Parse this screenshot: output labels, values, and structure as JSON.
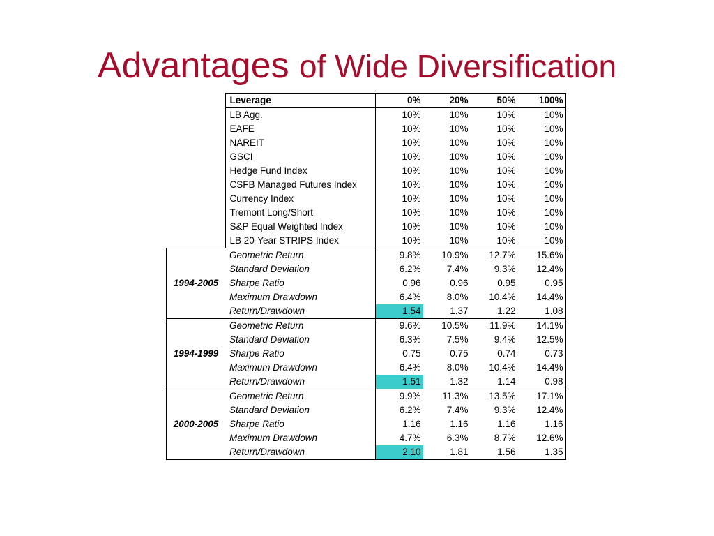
{
  "title": {
    "part1": "Advantages",
    "part2": "of Wide Diversification"
  },
  "table": {
    "header": [
      "Leverage",
      "0%",
      "20%",
      "50%",
      "100%"
    ],
    "weights": [
      {
        "name": "LB Agg.",
        "values": [
          "10%",
          "10%",
          "10%",
          "10%"
        ]
      },
      {
        "name": "EAFE",
        "values": [
          "10%",
          "10%",
          "10%",
          "10%"
        ]
      },
      {
        "name": "NAREIT",
        "values": [
          "10%",
          "10%",
          "10%",
          "10%"
        ]
      },
      {
        "name": "GSCI",
        "values": [
          "10%",
          "10%",
          "10%",
          "10%"
        ]
      },
      {
        "name": "Hedge Fund Index",
        "values": [
          "10%",
          "10%",
          "10%",
          "10%"
        ]
      },
      {
        "name": "CSFB Managed Futures Index",
        "values": [
          "10%",
          "10%",
          "10%",
          "10%"
        ]
      },
      {
        "name": "Currency Index",
        "values": [
          "10%",
          "10%",
          "10%",
          "10%"
        ]
      },
      {
        "name": "Tremont Long/Short",
        "values": [
          "10%",
          "10%",
          "10%",
          "10%"
        ]
      },
      {
        "name": "S&P Equal Weighted Index",
        "values": [
          "10%",
          "10%",
          "10%",
          "10%"
        ]
      },
      {
        "name": "LB 20-Year STRIPS Index",
        "values": [
          "10%",
          "10%",
          "10%",
          "10%"
        ]
      }
    ],
    "periods": [
      {
        "label": "1994-2005",
        "rows": [
          {
            "name": "Geometric Return",
            "values": [
              "9.8%",
              "10.9%",
              "12.7%",
              "15.6%"
            ]
          },
          {
            "name": "Standard Deviation",
            "values": [
              "6.2%",
              "7.4%",
              "9.3%",
              "12.4%"
            ]
          },
          {
            "name": "Sharpe Ratio",
            "values": [
              "0.96",
              "0.96",
              "0.95",
              "0.95"
            ]
          },
          {
            "name": "Maximum Drawdown",
            "values": [
              "6.4%",
              "8.0%",
              "10.4%",
              "14.4%"
            ]
          },
          {
            "name": "Return/Drawdown",
            "values": [
              "1.54",
              "1.37",
              "1.22",
              "1.08"
            ]
          }
        ]
      },
      {
        "label": "1994-1999",
        "rows": [
          {
            "name": "Geometric Return",
            "values": [
              "9.6%",
              "10.5%",
              "11.9%",
              "14.1%"
            ]
          },
          {
            "name": "Standard Deviation",
            "values": [
              "6.3%",
              "7.5%",
              "9.4%",
              "12.5%"
            ]
          },
          {
            "name": "Sharpe Ratio",
            "values": [
              "0.75",
              "0.75",
              "0.74",
              "0.73"
            ]
          },
          {
            "name": "Maximum Drawdown",
            "values": [
              "6.4%",
              "8.0%",
              "10.4%",
              "14.4%"
            ]
          },
          {
            "name": "Return/Drawdown",
            "values": [
              "1.51",
              "1.32",
              "1.14",
              "0.98"
            ]
          }
        ]
      },
      {
        "label": "2000-2005",
        "rows": [
          {
            "name": "Geometric Return",
            "values": [
              "9.9%",
              "11.3%",
              "13.5%",
              "17.1%"
            ]
          },
          {
            "name": "Standard Deviation",
            "values": [
              "6.2%",
              "7.4%",
              "9.3%",
              "12.4%"
            ]
          },
          {
            "name": "Sharpe Ratio",
            "values": [
              "1.16",
              "1.16",
              "1.16",
              "1.16"
            ]
          },
          {
            "name": "Maximum Drawdown",
            "values": [
              "4.7%",
              "6.3%",
              "8.7%",
              "12.6%"
            ]
          },
          {
            "name": "Return/Drawdown",
            "values": [
              "2.10",
              "1.81",
              "1.56",
              "1.35"
            ]
          }
        ]
      }
    ],
    "highlight_color": "#3ccccc",
    "title_color": "#a50d2c"
  }
}
